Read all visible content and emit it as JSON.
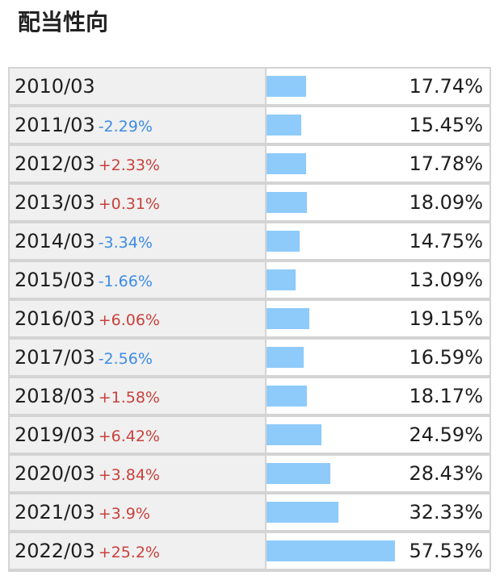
{
  "title": "配当性向",
  "colors": {
    "bar": "#8ecbfb",
    "positive_change": "#c8413c",
    "negative_change": "#3c8ce6"
  },
  "chart_data": {
    "type": "table",
    "bar_max": 57.53,
    "rows": [
      {
        "year": "2010/03",
        "change": "",
        "value": 17.74,
        "value_label": "17.74%"
      },
      {
        "year": "2011/03",
        "change": "-2.29%",
        "value": 15.45,
        "value_label": "15.45%"
      },
      {
        "year": "2012/03",
        "change": "+2.33%",
        "value": 17.78,
        "value_label": "17.78%"
      },
      {
        "year": "2013/03",
        "change": "+0.31%",
        "value": 18.09,
        "value_label": "18.09%"
      },
      {
        "year": "2014/03",
        "change": "-3.34%",
        "value": 14.75,
        "value_label": "14.75%"
      },
      {
        "year": "2015/03",
        "change": "-1.66%",
        "value": 13.09,
        "value_label": "13.09%"
      },
      {
        "year": "2016/03",
        "change": "+6.06%",
        "value": 19.15,
        "value_label": "19.15%"
      },
      {
        "year": "2017/03",
        "change": "-2.56%",
        "value": 16.59,
        "value_label": "16.59%"
      },
      {
        "year": "2018/03",
        "change": "+1.58%",
        "value": 18.17,
        "value_label": "18.17%"
      },
      {
        "year": "2019/03",
        "change": "+6.42%",
        "value": 24.59,
        "value_label": "24.59%"
      },
      {
        "year": "2020/03",
        "change": "+3.84%",
        "value": 28.43,
        "value_label": "28.43%"
      },
      {
        "year": "2021/03",
        "change": "+3.9%",
        "value": 32.33,
        "value_label": "32.33%"
      },
      {
        "year": "2022/03",
        "change": "+25.2%",
        "value": 57.53,
        "value_label": "57.53%"
      }
    ]
  }
}
